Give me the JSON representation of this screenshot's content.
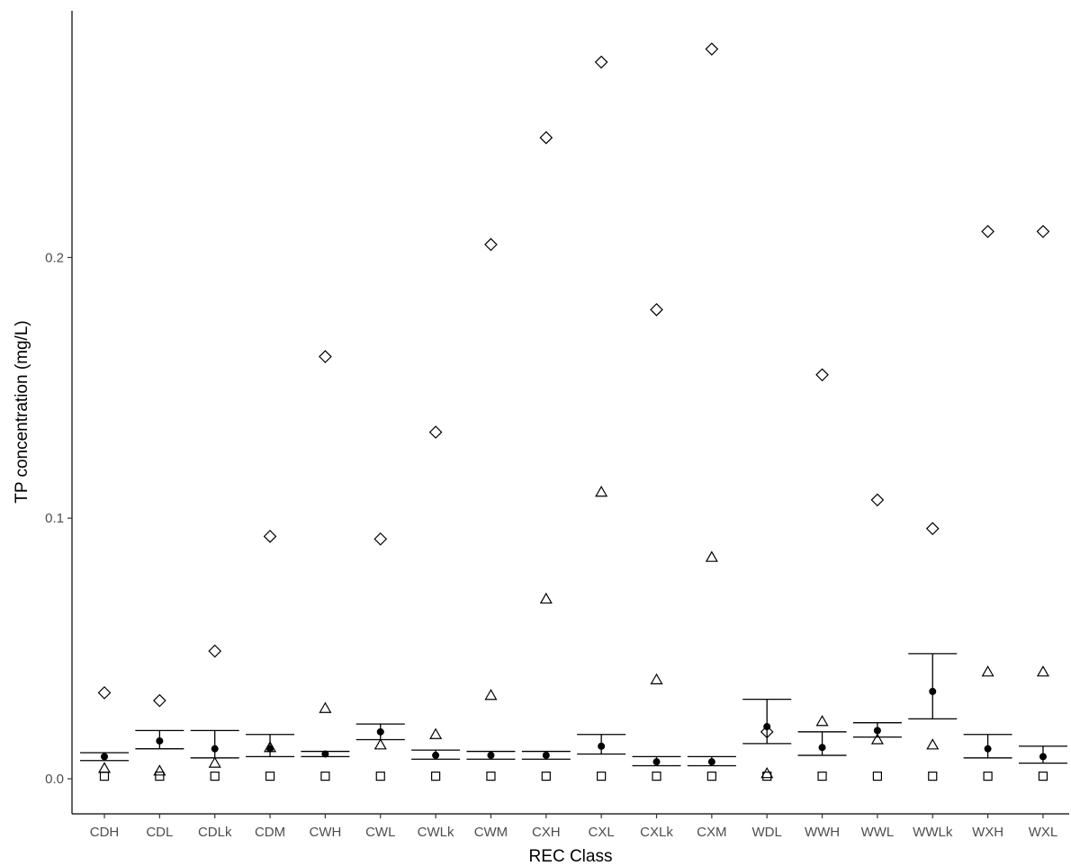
{
  "chart_data": {
    "type": "scatter",
    "title": "",
    "xlabel": "REC Class",
    "ylabel": "TP concentration (mg/L)",
    "ylim": [
      -0.013,
      0.294
    ],
    "yticks": [
      0.0,
      0.1,
      0.2
    ],
    "ytick_labels": [
      "0.0",
      "0.1",
      "0.2"
    ],
    "grid": false,
    "legend": "none",
    "categories": [
      "CDH",
      "CDL",
      "CDLk",
      "CDM",
      "CWH",
      "CWL",
      "CWLk",
      "CWM",
      "CXH",
      "CXL",
      "CXLk",
      "CXM",
      "WDL",
      "WWH",
      "WWL",
      "WWLk",
      "WXH",
      "WXL"
    ],
    "series": [
      {
        "marker": "filled-circle",
        "values": [
          0.0085,
          0.0145,
          0.0115,
          0.0115,
          0.0095,
          0.018,
          0.009,
          0.009,
          0.009,
          0.0125,
          0.0065,
          0.0065,
          0.02,
          0.012,
          0.0185,
          0.0335,
          0.0115,
          0.0085
        ]
      },
      {
        "marker": "error-bar",
        "lower": [
          0.007,
          0.0115,
          0.008,
          0.0085,
          0.0085,
          0.015,
          0.0075,
          0.0075,
          0.0075,
          0.0095,
          0.005,
          0.005,
          0.0135,
          0.009,
          0.016,
          0.023,
          0.008,
          0.006
        ],
        "upper": [
          0.01,
          0.0185,
          0.0185,
          0.017,
          0.0105,
          0.021,
          0.011,
          0.0105,
          0.0105,
          0.017,
          0.0085,
          0.0085,
          0.0305,
          0.018,
          0.0215,
          0.048,
          0.017,
          0.0125
        ]
      },
      {
        "marker": "open-square",
        "values": [
          0.001,
          0.001,
          0.001,
          0.001,
          0.001,
          0.001,
          0.001,
          0.001,
          0.001,
          0.001,
          0.001,
          0.001,
          0.001,
          0.001,
          0.001,
          0.001,
          0.001,
          0.001
        ]
      },
      {
        "marker": "open-triangle",
        "values": [
          0.004,
          0.003,
          0.006,
          0.012,
          0.027,
          0.013,
          0.017,
          0.032,
          0.069,
          0.11,
          0.038,
          0.085,
          0.002,
          0.022,
          0.015,
          0.013,
          0.041,
          0.041
        ]
      },
      {
        "marker": "open-diamond",
        "values": [
          0.033,
          0.03,
          0.049,
          0.093,
          0.162,
          0.092,
          0.133,
          0.205,
          0.246,
          0.275,
          0.18,
          0.28,
          0.018,
          0.155,
          0.107,
          0.096,
          0.21,
          0.21
        ]
      }
    ]
  }
}
